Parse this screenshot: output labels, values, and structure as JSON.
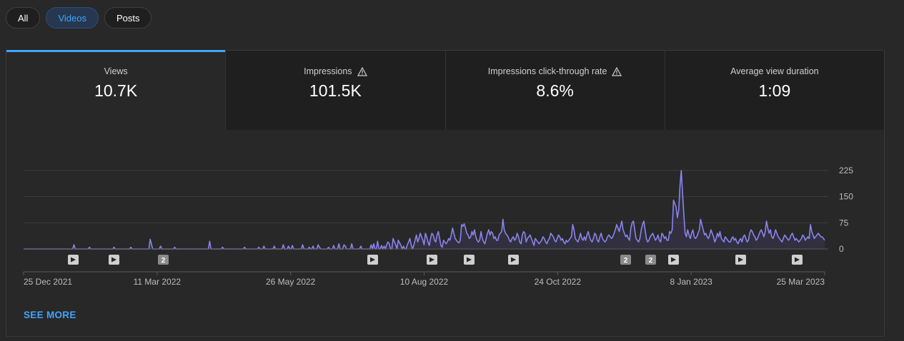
{
  "filters": [
    "All",
    "Videos",
    "Posts"
  ],
  "selected_filter": "Videos",
  "metrics": [
    {
      "label": "Views",
      "value": "10.7K",
      "warning": false,
      "active": true
    },
    {
      "label": "Impressions",
      "value": "101.5K",
      "warning": true,
      "active": false
    },
    {
      "label": "Impressions click-through rate",
      "value": "8.6%",
      "warning": true,
      "active": false
    },
    {
      "label": "Average view duration",
      "value": "1:09",
      "warning": false,
      "active": false
    }
  ],
  "see_more": "SEE MORE",
  "colors": {
    "accent": "#3ea6ff",
    "line": "#8b83ef",
    "selected_chip_bg": "#263850"
  },
  "chart_data": {
    "type": "line",
    "series": [
      {
        "values": [
          0,
          0,
          0,
          0,
          0,
          0,
          0,
          0,
          0,
          0,
          0,
          0,
          0,
          0,
          0,
          0,
          0,
          0,
          0,
          0,
          0,
          0,
          0,
          0,
          0,
          0,
          0,
          0,
          0,
          0,
          0,
          0,
          0,
          0,
          0,
          0,
          0,
          0,
          0,
          12,
          0,
          0,
          0,
          0,
          0,
          0,
          0,
          0,
          0,
          0,
          0,
          5,
          0,
          0,
          0,
          0,
          0,
          0,
          0,
          0,
          0,
          0,
          0,
          0,
          0,
          0,
          0,
          0,
          0,
          0,
          5,
          0,
          0,
          0,
          0,
          0,
          0,
          0,
          0,
          0,
          0,
          0,
          0,
          5,
          0,
          0,
          0,
          0,
          0,
          0,
          0,
          0,
          0,
          0,
          0,
          0,
          0,
          0,
          28,
          12,
          0,
          0,
          0,
          0,
          0,
          0,
          8,
          0,
          0,
          0,
          0,
          0,
          0,
          0,
          0,
          0,
          0,
          5,
          0,
          0,
          0,
          0,
          0,
          0,
          0,
          0,
          0,
          0,
          0,
          0,
          0,
          0,
          0,
          0,
          0,
          0,
          0,
          0,
          0,
          0,
          0,
          0,
          0,
          0,
          22,
          0,
          0,
          0,
          0,
          0,
          0,
          0,
          0,
          0,
          5,
          0,
          0,
          0,
          0,
          0,
          0,
          0,
          0,
          0,
          0,
          0,
          0,
          0,
          0,
          0,
          0,
          5,
          0,
          0,
          0,
          0,
          0,
          0,
          0,
          0,
          0,
          0,
          5,
          0,
          0,
          0,
          8,
          0,
          0,
          0,
          0,
          0,
          0,
          0,
          8,
          0,
          0,
          0,
          0,
          0,
          0,
          12,
          0,
          0,
          0,
          8,
          0,
          0,
          10,
          0,
          0,
          0,
          0,
          0,
          0,
          0,
          12,
          0,
          0,
          0,
          0,
          5,
          0,
          0,
          8,
          0,
          0,
          0,
          12,
          5,
          0,
          0,
          0,
          0,
          0,
          0,
          5,
          0,
          0,
          0,
          10,
          0,
          0,
          0,
          15,
          0,
          0,
          0,
          12,
          8,
          0,
          0,
          0,
          0,
          15,
          0,
          0,
          0,
          0,
          0,
          0,
          8,
          0,
          0,
          0,
          0,
          0,
          0,
          0,
          12,
          0,
          15,
          0,
          0,
          22,
          0,
          0,
          10,
          0,
          8,
          0,
          12,
          20,
          15,
          0,
          0,
          30,
          20,
          12,
          0,
          25,
          18,
          10,
          0,
          8,
          0,
          0,
          12,
          20,
          30,
          12,
          0,
          10,
          25,
          40,
          20,
          30,
          45,
          35,
          25,
          12,
          45,
          35,
          20,
          10,
          30,
          45,
          40,
          25,
          20,
          40,
          50,
          30,
          10,
          5,
          25,
          20,
          15,
          20,
          30,
          25,
          40,
          60,
          45,
          30,
          25,
          20,
          18,
          25,
          70,
          65,
          72,
          60,
          45,
          40,
          30,
          35,
          50,
          40,
          55,
          35,
          25,
          20,
          25,
          50,
          30,
          20,
          15,
          30,
          45,
          55,
          40,
          50,
          45,
          30,
          35,
          25,
          25,
          40,
          45,
          50,
          85,
          55,
          45,
          40,
          35,
          25,
          20,
          30,
          35,
          25,
          30,
          45,
          35,
          20,
          15,
          40,
          50,
          45,
          20,
          30,
          35,
          40,
          30,
          20,
          10,
          30,
          25,
          20,
          15,
          20,
          25,
          35,
          30,
          20,
          15,
          25,
          30,
          45,
          40,
          35,
          25,
          20,
          30,
          40,
          35,
          25,
          30,
          20,
          15,
          25,
          20,
          25,
          30,
          35,
          70,
          55,
          30,
          25,
          20,
          30,
          45,
          30,
          25,
          35,
          25,
          40,
          50,
          35,
          25,
          20,
          30,
          45,
          40,
          25,
          20,
          35,
          45,
          30,
          25,
          20,
          25,
          35,
          40,
          35,
          30,
          35,
          45,
          55,
          70,
          60,
          50,
          65,
          80,
          55,
          45,
          35,
          40,
          30,
          25,
          60,
          75,
          80,
          55,
          30,
          25,
          20,
          30,
          55,
          70,
          80,
          55,
          30,
          20,
          25,
          35,
          40,
          45,
          35,
          25,
          30,
          40,
          25,
          20,
          45,
          40,
          30,
          35,
          25,
          25,
          50,
          45,
          55,
          140,
          130,
          120,
          90,
          110,
          180,
          225,
          160,
          100,
          45,
          35,
          55,
          40,
          30,
          45,
          55,
          35,
          30,
          35,
          45,
          55,
          85,
          70,
          55,
          40,
          45,
          35,
          30,
          40,
          55,
          45,
          35,
          20,
          30,
          45,
          35,
          50,
          30,
          25,
          20,
          35,
          30,
          25,
          20,
          20,
          30,
          35,
          25,
          30,
          20,
          15,
          25,
          30,
          20,
          35,
          40,
          30,
          20,
          25,
          45,
          55,
          50,
          40,
          35,
          25,
          30,
          40,
          50,
          55,
          45,
          35,
          50,
          80,
          60,
          45,
          55,
          35,
          30,
          40,
          55,
          45,
          35,
          30,
          25,
          20,
          30,
          40,
          35,
          30,
          25,
          30,
          40,
          45,
          35,
          25,
          30,
          25,
          20,
          25,
          30,
          40,
          35,
          25,
          30,
          35,
          30,
          70,
          50,
          40,
          30,
          35,
          40,
          45,
          40,
          35,
          35,
          30,
          25
        ]
      }
    ],
    "x_tick_labels": [
      "25 Dec 2021",
      "11 Mar 2022",
      "26 May 2022",
      "10 Aug 2022",
      "24 Oct 2022",
      "8 Jan 2023",
      "25 Mar 2023"
    ],
    "y_tick_labels": [
      "0",
      "75",
      "150",
      "225"
    ],
    "ylim": [
      0,
      225
    ],
    "grid": true,
    "markers": [
      {
        "type": "play"
      },
      {
        "type": "play"
      },
      {
        "type": "count",
        "label": "2"
      },
      {
        "type": "play"
      },
      {
        "type": "play"
      },
      {
        "type": "play"
      },
      {
        "type": "play"
      },
      {
        "type": "count",
        "label": "2"
      },
      {
        "type": "count",
        "label": "2"
      },
      {
        "type": "play"
      },
      {
        "type": "play"
      },
      {
        "type": "play"
      }
    ]
  }
}
